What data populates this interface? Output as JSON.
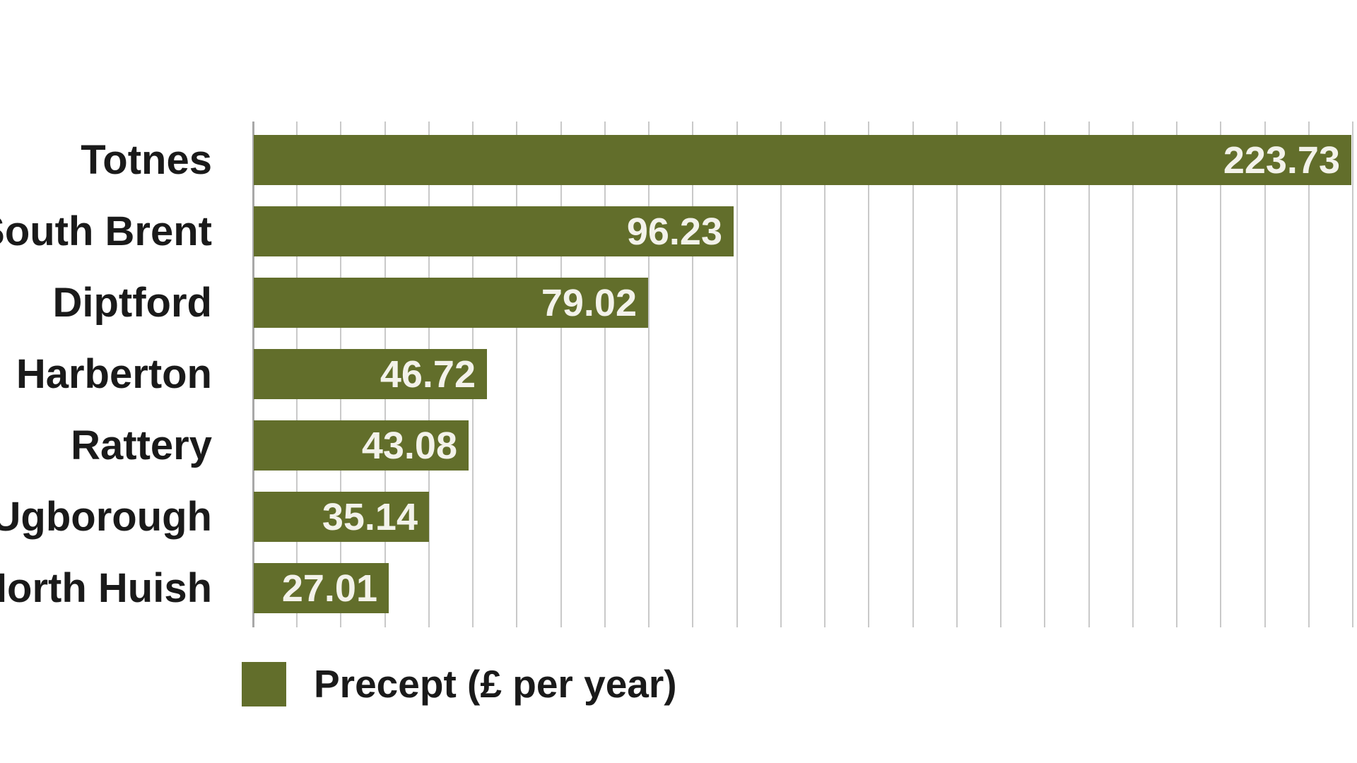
{
  "chart_data": {
    "type": "bar",
    "orientation": "horizontal",
    "title": "",
    "categories": [
      "Totnes",
      "South Brent",
      "Diptford",
      "Harberton",
      "Rattery",
      "Ugborough",
      "North Huish"
    ],
    "values": [
      223.73,
      96.23,
      79.02,
      46.72,
      43.08,
      35.14,
      27.01
    ],
    "value_labels": [
      "223.73",
      "96.23",
      "79.02",
      "46.72",
      "43.08",
      "35.14",
      "27.01"
    ],
    "series_name": "Precept (£ per year)",
    "legend": {
      "label": "Precept (£ per year)",
      "position": "bottom-left"
    },
    "axis": {
      "x_min": 0,
      "x_scale_max": 220,
      "gridline_intervals": 25,
      "grid": true,
      "tick_labels_shown": false,
      "note": "longest bar (Totnes 223.73) is clipped at right plot edge"
    },
    "value_label_position": "inside-end",
    "colors": {
      "bar": "#626e2b",
      "value_text": "#f3f2ea",
      "category_text": "#1a1a1a",
      "legend_text": "#1a1a1a",
      "gridline": "#c9c9c9",
      "axis_line": "#a8a8a8",
      "background": "#ffffff"
    }
  }
}
